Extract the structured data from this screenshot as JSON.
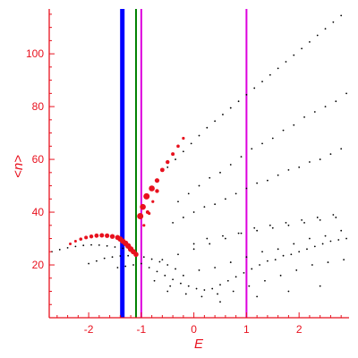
{
  "chart_data": {
    "type": "scatter",
    "xlabel": "E",
    "ylabel": "<n>",
    "xlim": [
      -2.75,
      2.95
    ],
    "ylim": [
      0,
      117
    ],
    "x_ticks": [
      -2,
      -1,
      0,
      1,
      2
    ],
    "x_tick_labels": [
      "-2",
      "-1",
      "0",
      "1",
      "2"
    ],
    "y_ticks": [
      20,
      40,
      60,
      80,
      100
    ],
    "y_tick_labels": [
      "20",
      "40",
      "60",
      "80",
      "100"
    ],
    "grid": false,
    "colors": {
      "axis": "#e8111e",
      "points": "#000000",
      "highlight": "#e8111e",
      "line_blue": "#0000ff",
      "line_green": "#008000",
      "line_magenta": "#dd00dd"
    },
    "vertical_lines": [
      {
        "x": -1.36,
        "color": "#0000ff",
        "width": "thick"
      },
      {
        "x": -1.1,
        "color": "#008000",
        "width": "normal"
      },
      {
        "x": -1.0,
        "color": "#dd00dd",
        "width": "normal"
      },
      {
        "x": 1.0,
        "color": "#dd00dd",
        "width": "normal"
      }
    ],
    "series": [
      {
        "role": "upper-band",
        "color": "#000000",
        "x": [
          -0.5,
          -0.35,
          -0.2,
          -0.05,
          0.1,
          0.25,
          0.4,
          0.55,
          0.7,
          0.85,
          1.0,
          1.15,
          1.3,
          1.45,
          1.6,
          1.75,
          1.9,
          2.05,
          2.2,
          2.35,
          2.5,
          2.65,
          2.8
        ],
        "y": [
          57,
          60,
          63,
          66,
          69,
          72,
          74.5,
          77,
          79.5,
          82,
          84.5,
          87,
          89.5,
          92,
          94.5,
          97,
          99.5,
          102,
          104.5,
          107,
          109.5,
          112,
          114.5
        ]
      },
      {
        "role": "band-2",
        "color": "#000000",
        "x": [
          -0.3,
          -0.1,
          0.1,
          0.3,
          0.5,
          0.7,
          0.9,
          1.1,
          1.3,
          1.5,
          1.7,
          1.9,
          2.1,
          2.3,
          2.5,
          2.7,
          2.9
        ],
        "y": [
          44,
          47,
          50,
          53,
          55,
          58,
          61,
          64,
          66,
          68,
          71,
          73,
          76,
          78,
          80,
          82,
          85
        ]
      },
      {
        "role": "band-3",
        "color": "#000000",
        "x": [
          -0.4,
          -0.2,
          0.0,
          0.2,
          0.4,
          0.6,
          0.8,
          1.0,
          1.2,
          1.4,
          1.6,
          1.8,
          2.0,
          2.2,
          2.4,
          2.6,
          2.8
        ],
        "y": [
          36,
          38,
          40,
          42,
          43,
          45,
          47,
          49,
          51,
          52,
          54,
          56,
          57,
          59,
          60,
          62,
          64
        ]
      },
      {
        "role": "low-left-arc",
        "color": "#000000",
        "x": [
          -2.7,
          -2.55,
          -2.4,
          -2.25,
          -2.1,
          -1.95,
          -1.8,
          -1.65,
          -1.5,
          -1.35,
          -2.0,
          -1.85,
          -1.7,
          -1.55,
          -1.4,
          -1.25,
          -1.1,
          -0.95,
          -0.8,
          -0.65,
          -0.5,
          -0.35
        ],
        "y": [
          25,
          25.8,
          26.5,
          27,
          27.4,
          27.6,
          27.5,
          27.2,
          26.8,
          26.3,
          20.5,
          21.5,
          22.5,
          23,
          23.4,
          23.5,
          23.4,
          23,
          22.2,
          21.2,
          20,
          18.5
        ]
      },
      {
        "role": "cloud",
        "color": "#000000",
        "x": [
          -1.45,
          -1.3,
          -1.15,
          -1.0,
          -0.85,
          -0.7,
          -0.55,
          -0.4,
          -0.25,
          -0.1,
          0.05,
          0.2,
          0.35,
          0.5,
          0.65,
          0.8,
          0.95,
          1.1,
          1.25,
          1.4,
          1.55,
          1.7,
          1.85,
          2.0,
          2.15,
          2.3,
          2.45,
          2.6,
          2.75,
          2.9,
          -0.6,
          -0.3,
          0.0,
          0.3,
          0.6,
          0.9,
          1.2,
          1.5,
          1.8,
          2.1,
          2.4,
          2.7,
          -0.45,
          -0.15,
          0.15,
          0.45,
          0.75,
          1.05,
          1.35,
          1.65,
          1.95,
          2.25,
          2.55,
          2.85,
          -0.2,
          0.1,
          0.4,
          0.7,
          1.0,
          1.3,
          1.6,
          1.9,
          2.2,
          2.5,
          2.8,
          0.0,
          0.25,
          0.55,
          0.85,
          1.15,
          1.45,
          1.75,
          2.05,
          2.35,
          2.65,
          -0.75,
          -0.5,
          0.5,
          1.2,
          1.8,
          2.4
        ],
        "y": [
          19,
          19.5,
          20,
          20.5,
          19,
          17.5,
          16,
          14.5,
          13,
          12,
          11,
          10.5,
          11,
          12.5,
          14,
          15.5,
          17,
          18.5,
          20,
          21.5,
          22,
          23.5,
          24,
          25,
          26,
          27,
          28,
          29,
          29.5,
          30,
          22,
          24,
          26,
          28,
          30,
          32,
          33,
          34,
          35,
          36,
          37,
          38,
          12,
          9,
          8,
          9,
          10,
          12,
          14,
          16,
          18,
          20,
          21,
          22,
          16,
          18,
          19,
          21,
          23,
          25,
          26,
          28,
          30,
          31,
          33,
          28,
          30,
          31,
          32,
          34,
          35,
          36,
          37,
          38,
          39,
          14,
          10,
          6,
          8,
          10,
          12
        ]
      },
      {
        "role": "highlight-red",
        "color": "#e8111e",
        "x": [
          -2.35,
          -2.25,
          -2.15,
          -2.05,
          -1.95,
          -1.85,
          -1.75,
          -1.65,
          -1.55,
          -1.45,
          -1.4,
          -1.35,
          -1.3,
          -1.25,
          -1.2,
          -1.15,
          -1.1,
          -1.02,
          -0.97,
          -0.9,
          -0.8,
          -0.7,
          -0.6,
          -0.5,
          -0.4,
          -0.3,
          -0.2,
          -0.88,
          -0.7,
          -0.95,
          -0.85,
          -0.78
        ],
        "y": [
          28,
          29,
          29.8,
          30.4,
          30.8,
          31.1,
          31.2,
          31.1,
          30.8,
          30.4,
          29.8,
          29,
          28.2,
          27.2,
          26,
          25,
          24,
          38.5,
          42,
          46,
          49,
          52,
          56,
          59,
          62,
          65,
          68,
          40,
          48,
          35,
          39.5,
          44
        ],
        "sizes": [
          1.5,
          1.5,
          1.8,
          2,
          2.2,
          2.4,
          2.5,
          2.6,
          2.7,
          2.8,
          3,
          3,
          3.1,
          3.2,
          3.2,
          3,
          2.8,
          3.5,
          3.3,
          3.5,
          3.3,
          2.6,
          2.4,
          2.2,
          2,
          1.8,
          1.6,
          2,
          2.2,
          1.6,
          1.6,
          1.6
        ]
      }
    ]
  }
}
